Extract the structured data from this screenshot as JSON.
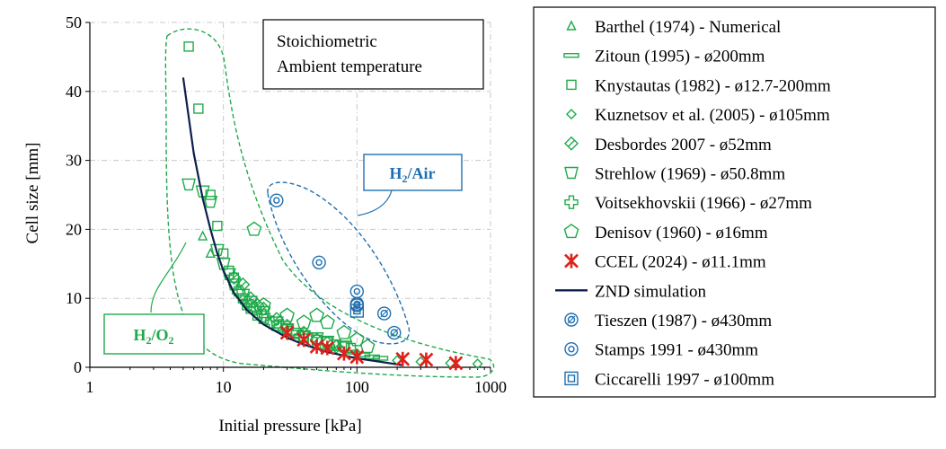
{
  "colors": {
    "green": "#1faa4a",
    "blue": "#1f6fb0",
    "red": "#e0201b",
    "navy": "#0d1f4d",
    "grid": "#c8c8c8"
  },
  "chart_data": {
    "type": "scatter",
    "title": "",
    "xlabel": "Initial pressure [kPa]",
    "ylabel": "Cell size [mm]",
    "xscale": "log",
    "xlim": [
      1,
      1000
    ],
    "ylim": [
      0,
      50
    ],
    "xticks": [
      1,
      10,
      100,
      1000
    ],
    "xtick_labels": [
      "1",
      "10",
      "100",
      "1000"
    ],
    "yticks": [
      0,
      10,
      20,
      30,
      40,
      50
    ],
    "ytick_labels": [
      "0",
      "10",
      "20",
      "30",
      "40",
      "50"
    ],
    "grid": true,
    "legend_position": "right",
    "annotation_box": {
      "line1": "Stoichiometric",
      "line2": "Ambient temperature"
    },
    "region_labels": {
      "h2o2": {
        "base": "H",
        "sub1": "2",
        "mid": "/O",
        "sub2": "2"
      },
      "h2air": {
        "base": "H",
        "sub1": "2",
        "mid": "/Air",
        "sub2": ""
      }
    },
    "series": [
      {
        "name": "Barthel (1974) - Numerical",
        "marker": "triangle",
        "color": "#1faa4a",
        "points": [
          [
            7,
            19
          ],
          [
            8,
            16.5
          ]
        ]
      },
      {
        "name": "Zitoun (1995) -  ø200mm",
        "marker": "dash",
        "color": "#1faa4a",
        "points": [
          [
            60,
            3
          ],
          [
            70,
            2.7
          ],
          [
            90,
            2.2
          ],
          [
            110,
            1.8
          ],
          [
            130,
            1.5
          ],
          [
            150,
            1.3
          ]
        ]
      },
      {
        "name": "Knystautas (1982) -  ø12.7-200mm",
        "marker": "square",
        "color": "#1faa4a",
        "points": [
          [
            5.5,
            46.5
          ],
          [
            6.5,
            37.5
          ],
          [
            8,
            25
          ],
          [
            9,
            20.5
          ],
          [
            10,
            16.5
          ],
          [
            11,
            14
          ],
          [
            12,
            13
          ],
          [
            13,
            11
          ],
          [
            14,
            10
          ],
          [
            15,
            9
          ],
          [
            16,
            8.5
          ],
          [
            18,
            7.5
          ],
          [
            20,
            7
          ],
          [
            25,
            6
          ],
          [
            30,
            5.5
          ],
          [
            35,
            5
          ],
          [
            40,
            4.5
          ],
          [
            50,
            4
          ],
          [
            60,
            3.7
          ],
          [
            70,
            3.3
          ],
          [
            80,
            3
          ],
          [
            90,
            2.8
          ]
        ]
      },
      {
        "name": "Kuznetsov et al. (2005) -  ø105mm",
        "marker": "diamond",
        "color": "#1faa4a",
        "points": [
          [
            100,
            2
          ],
          [
            200,
            1
          ],
          [
            300,
            0.8
          ],
          [
            500,
            0.6
          ],
          [
            800,
            0.5
          ]
        ]
      },
      {
        "name": "Desbordes 2007 -  ø52mm",
        "marker": "diamond-hatch",
        "color": "#1faa4a",
        "points": [
          [
            12,
            13
          ],
          [
            14,
            12
          ],
          [
            16,
            10
          ],
          [
            18,
            9
          ],
          [
            20,
            8.5
          ],
          [
            25,
            7
          ],
          [
            30,
            6
          ],
          [
            40,
            5
          ],
          [
            50,
            4
          ],
          [
            60,
            3.5
          ],
          [
            70,
            3
          ]
        ]
      },
      {
        "name": "Strehlow (1969) -  ø50.8mm",
        "marker": "tri-down",
        "color": "#1faa4a",
        "points": [
          [
            5.5,
            26.5
          ],
          [
            7,
            25.5
          ],
          [
            8,
            24
          ],
          [
            9,
            17
          ],
          [
            10,
            15
          ],
          [
            11,
            13.5
          ],
          [
            12,
            12
          ],
          [
            14,
            10.5
          ],
          [
            16,
            9.5
          ],
          [
            20,
            8
          ],
          [
            25,
            6.5
          ],
          [
            30,
            5.5
          ],
          [
            40,
            4.5
          ],
          [
            50,
            4.2
          ],
          [
            60,
            3.7
          ],
          [
            80,
            3
          ]
        ]
      },
      {
        "name": "Voitsekhovskii (1966) -  ø27mm",
        "marker": "plus",
        "color": "#1faa4a",
        "points": [
          [
            13,
            11
          ],
          [
            15,
            9.5
          ],
          [
            17,
            8.5
          ],
          [
            20,
            7.5
          ],
          [
            23,
            6.5
          ],
          [
            27,
            6
          ],
          [
            32,
            5
          ],
          [
            38,
            4.5
          ],
          [
            45,
            4
          ]
        ]
      },
      {
        "name": "Denisov (1960) -  ø16mm",
        "marker": "pentagon",
        "color": "#1faa4a",
        "points": [
          [
            17,
            20
          ],
          [
            20,
            9
          ],
          [
            30,
            7.5
          ],
          [
            40,
            6.5
          ],
          [
            50,
            7.5
          ],
          [
            60,
            6.5
          ],
          [
            80,
            5
          ],
          [
            100,
            4
          ],
          [
            120,
            3
          ]
        ]
      },
      {
        "name": "CCEL (2024) -  ø11.1mm",
        "marker": "star",
        "color": "#e0201b",
        "points": [
          [
            30,
            5
          ],
          [
            40,
            4
          ],
          [
            50,
            3
          ],
          [
            60,
            2.8
          ],
          [
            80,
            2
          ],
          [
            100,
            1.5
          ],
          [
            220,
            1.2
          ],
          [
            330,
            1.1
          ],
          [
            550,
            0.6
          ]
        ]
      },
      {
        "name": "ZND simulation",
        "marker": "line",
        "color": "#0d1f4d",
        "points": [
          [
            5,
            42
          ],
          [
            6,
            31
          ],
          [
            7,
            24.5
          ],
          [
            8,
            20
          ],
          [
            9,
            16.5
          ],
          [
            10,
            14
          ],
          [
            12,
            10.8
          ],
          [
            15,
            8.3
          ],
          [
            20,
            6.2
          ],
          [
            30,
            4.3
          ],
          [
            40,
            3.3
          ],
          [
            60,
            2.2
          ],
          [
            100,
            1.3
          ],
          [
            150,
            0.8
          ],
          [
            220,
            0.3
          ]
        ]
      },
      {
        "name": "Tieszen (1987) -  ø430mm",
        "marker": "circle-hatch",
        "color": "#1f6fb0",
        "points": [
          [
            100,
            9
          ],
          [
            160,
            7.8
          ],
          [
            190,
            5
          ]
        ]
      },
      {
        "name": "Stamps 1991 -  ø430mm",
        "marker": "circle-dot",
        "color": "#1f6fb0",
        "points": [
          [
            25,
            24.2
          ],
          [
            52,
            15.2
          ],
          [
            100,
            11
          ],
          [
            100,
            9.2
          ]
        ]
      },
      {
        "name": "Ciccarelli 1997 -  ø100mm",
        "marker": "square-dot",
        "color": "#1f6fb0",
        "points": [
          [
            100,
            8.2
          ]
        ]
      }
    ]
  }
}
